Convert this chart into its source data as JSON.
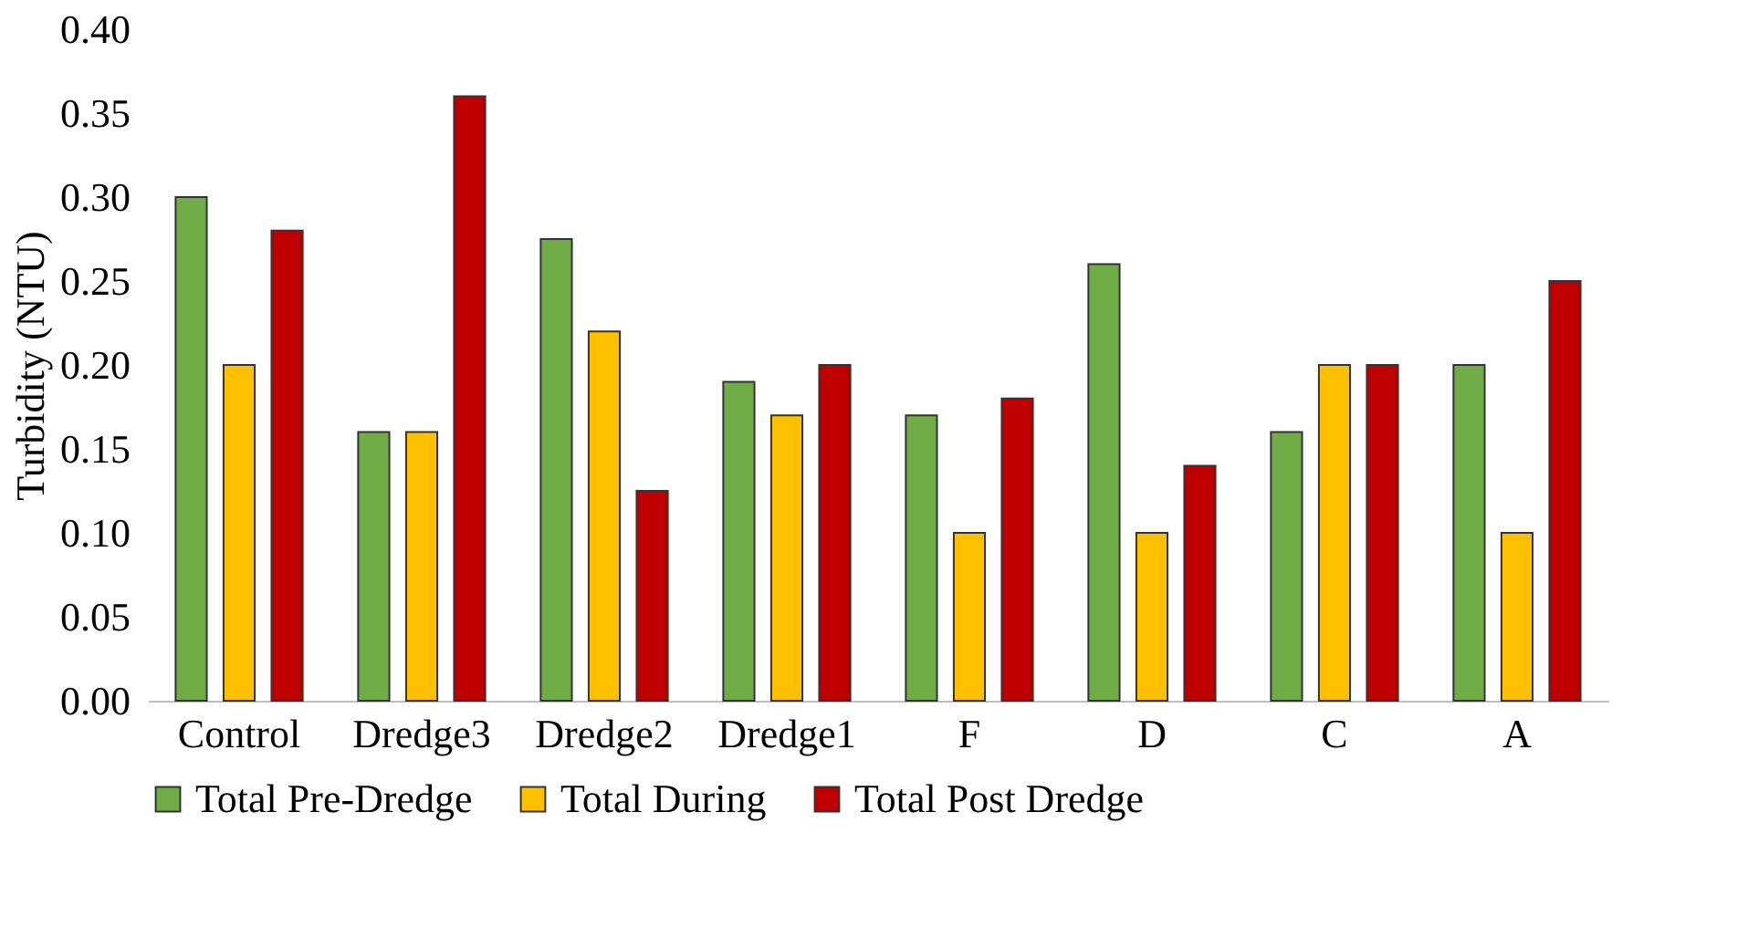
{
  "chart_data": {
    "type": "bar",
    "ylabel": "Turbidity  (NTU)",
    "categories": [
      "Control",
      "Dredge3",
      "Dredge2",
      "Dredge1",
      "F",
      "D",
      "C",
      "A"
    ],
    "series": [
      {
        "name": "Total Pre-Dredge",
        "color": "#70ad47",
        "values": [
          0.3,
          0.16,
          0.275,
          0.19,
          0.17,
          0.26,
          0.16,
          0.2
        ]
      },
      {
        "name": "Total During",
        "color": "#ffc000",
        "values": [
          0.2,
          0.16,
          0.22,
          0.17,
          0.1,
          0.1,
          0.2,
          0.1
        ]
      },
      {
        "name": "Total Post Dredge",
        "color": "#c00000",
        "values": [
          0.28,
          0.36,
          0.125,
          0.2,
          0.18,
          0.14,
          0.2,
          0.25
        ]
      }
    ],
    "ylim": [
      0,
      0.4
    ],
    "yticks": [
      {
        "value": 0,
        "label": "0.00"
      },
      {
        "value": 0.05,
        "label": "0.05"
      },
      {
        "value": 0.1,
        "label": "0.10"
      },
      {
        "value": 0.15,
        "label": "0.15"
      },
      {
        "value": 0.2,
        "label": "0.20"
      },
      {
        "value": 0.25,
        "label": "0.25"
      },
      {
        "value": 0.3,
        "label": "0.30"
      },
      {
        "value": 0.35,
        "label": "0.35"
      },
      {
        "value": 0.4,
        "label": "0.40"
      }
    ],
    "grid": false,
    "legend": "bottom"
  }
}
